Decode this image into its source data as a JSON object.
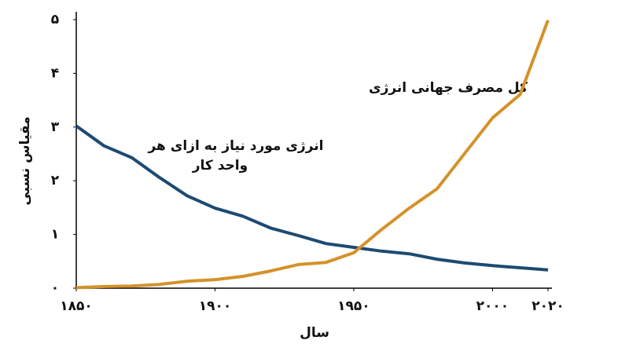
{
  "chart_data": {
    "type": "line",
    "x_label": "سال",
    "y_label": "مقیاس نسبی",
    "x": [
      1850,
      1860,
      1870,
      1880,
      1890,
      1900,
      1910,
      1920,
      1930,
      1940,
      1950,
      1960,
      1970,
      1980,
      1990,
      2000,
      2010,
      2020
    ],
    "series": [
      {
        "name": "انرژی مورد نیاز به ازای هر واحد کار",
        "name_lines": [
          "انرژی مورد نیاز به ازای هر",
          "واحد کار"
        ],
        "color": "#1d4a73",
        "values": [
          3.02,
          2.65,
          2.43,
          2.06,
          1.72,
          1.49,
          1.34,
          1.12,
          0.98,
          0.83,
          0.76,
          0.69,
          0.64,
          0.54,
          0.47,
          0.42,
          0.38,
          0.34
        ]
      },
      {
        "name": "کل مصرف جهانی انرژی",
        "color": "#d4922a",
        "values": [
          0.01,
          0.03,
          0.04,
          0.07,
          0.13,
          0.16,
          0.22,
          0.32,
          0.44,
          0.48,
          0.66,
          1.09,
          1.49,
          1.85,
          2.51,
          3.17,
          3.61,
          4.99
        ]
      }
    ],
    "xlim": [
      1850,
      2020
    ],
    "xticks": [
      {
        "value": 1850,
        "label": "۱۸۵۰"
      },
      {
        "value": 1900,
        "label": "۱۹۰۰"
      },
      {
        "value": 1950,
        "label": "۱۹۵۰"
      },
      {
        "value": 2000,
        "label": "۲۰۰۰"
      },
      {
        "value": 2020,
        "label": "۲۰۲۰"
      }
    ],
    "ylim": [
      0,
      5
    ],
    "yticks": [
      {
        "value": 0,
        "label": "۰"
      },
      {
        "value": 1,
        "label": "۱"
      },
      {
        "value": 2,
        "label": "۲"
      },
      {
        "value": 3,
        "label": "۳"
      },
      {
        "value": 4,
        "label": "۴"
      },
      {
        "value": 5,
        "label": "۵"
      }
    ],
    "grid": false
  }
}
